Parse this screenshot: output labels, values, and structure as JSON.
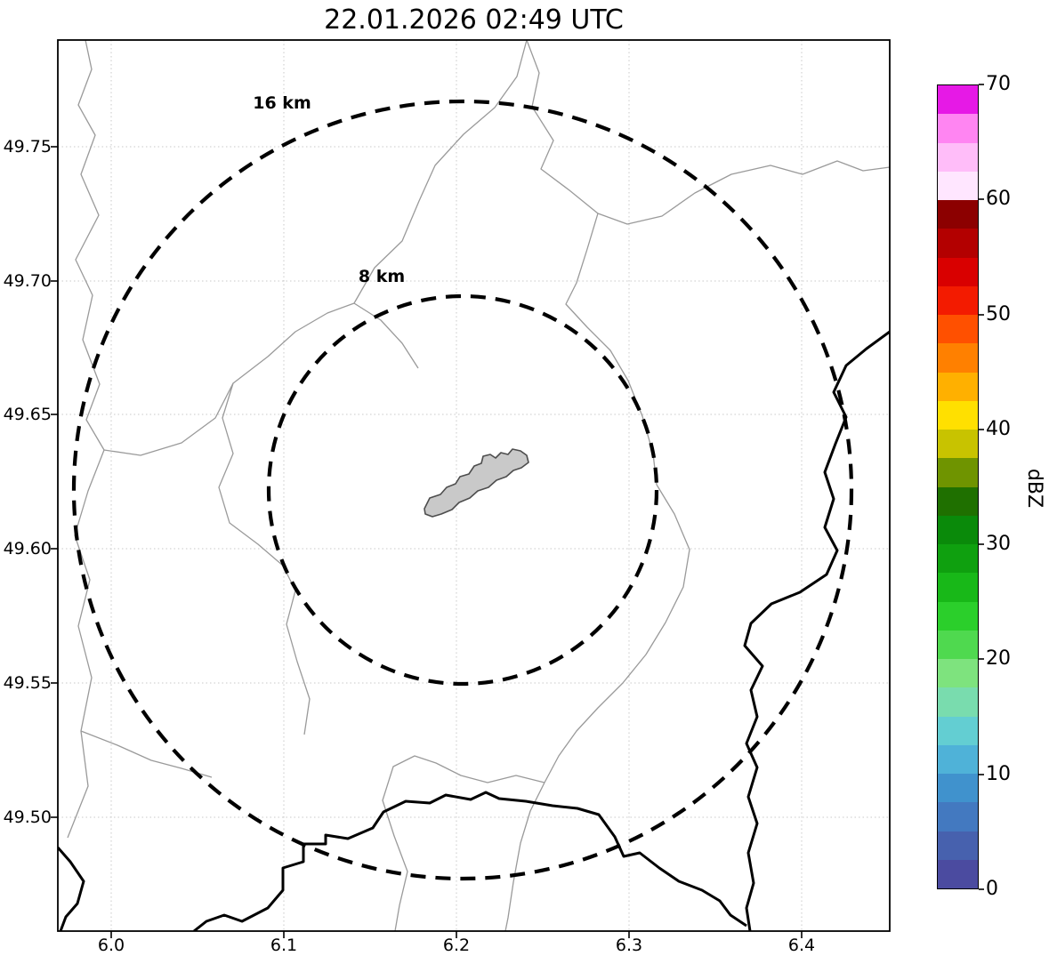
{
  "title": "22.01.2026 02:49 UTC",
  "axes": {
    "x_ticks": [
      "6.0",
      "6.1",
      "6.2",
      "6.3",
      "6.4"
    ],
    "y_ticks": [
      "49.75",
      "49.70",
      "49.65",
      "49.60",
      "49.55",
      "49.50"
    ]
  },
  "range_rings": {
    "outer_label": "16 km",
    "inner_label": "8 km"
  },
  "colorbar": {
    "label": "dBZ",
    "ticks_top_to_bottom": [
      "70",
      "60",
      "50",
      "40",
      "30",
      "20",
      "10",
      "0"
    ],
    "colors_bottom_to_top": [
      "#4b4ba0",
      "#4761ae",
      "#4379c0",
      "#4092cd",
      "#4fb2d8",
      "#63ced2",
      "#79dcae",
      "#7ee37e",
      "#4fd94f",
      "#2bcf2b",
      "#18b818",
      "#0fa00f",
      "#0a8a0a",
      "#1f7000",
      "#6f9400",
      "#c8c300",
      "#ffe000",
      "#ffb000",
      "#ff8000",
      "#ff5000",
      "#f31b00",
      "#d90000",
      "#b30000",
      "#8c0000",
      "#ffe6ff",
      "#ffbdf9",
      "#ff85f2",
      "#e619e6"
    ]
  },
  "map_colors": {
    "city_fill": "#c9c9c9",
    "thin_boundary": "#9a9a9a",
    "thick_border": "#000000",
    "ring_dash": "#000000"
  },
  "chart_data": {
    "type": "map",
    "title": "22.01.2026 02:49 UTC",
    "x_axis_ticks_lon": [
      6.0,
      6.1,
      6.2,
      6.3,
      6.4
    ],
    "y_axis_ticks_lat": [
      49.75,
      49.7,
      49.65,
      49.6,
      49.55,
      49.5
    ],
    "range_rings_km": [
      8,
      16
    ],
    "ring_center_lonlat": [
      6.2,
      49.62
    ],
    "colorbar": {
      "label": "dBZ",
      "min": 0,
      "max": 70,
      "ticks": [
        0,
        10,
        20,
        30,
        40,
        50,
        60,
        70
      ]
    },
    "radar_echoes": "none visible (clear map, base map only)"
  }
}
